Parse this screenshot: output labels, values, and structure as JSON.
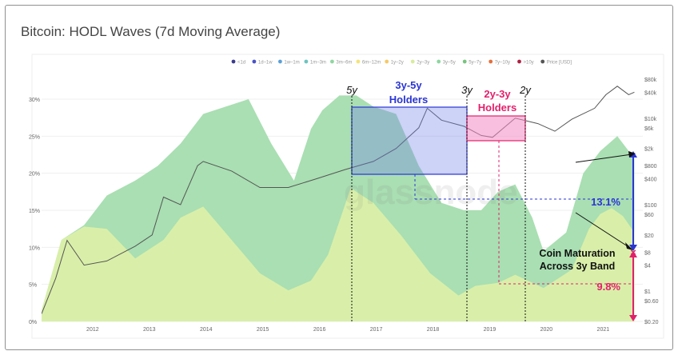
{
  "title": "Bitcoin: HODL Waves (7d Moving Average)",
  "watermark": "glassnode",
  "legend": [
    {
      "label": "<1d",
      "color": "#3b3b8f"
    },
    {
      "label": "1d–1w",
      "color": "#4a52c8"
    },
    {
      "label": "1w–1m",
      "color": "#5aa0d8"
    },
    {
      "label": "1m–3m",
      "color": "#6cc4c0"
    },
    {
      "label": "3m–6m",
      "color": "#8fd6a0"
    },
    {
      "label": "6m–12m",
      "color": "#f3e47a"
    },
    {
      "label": "1y–2y",
      "color": "#f7c868"
    },
    {
      "label": "2y–3y",
      "color": "#d7ec9e"
    },
    {
      "label": "3y–5y",
      "color": "#8ed6a0"
    },
    {
      "label": "5y–7y",
      "color": "#78c47f"
    },
    {
      "label": "7y–10y",
      "color": "#e46f3c"
    },
    {
      "label": ">10y",
      "color": "#b02040"
    },
    {
      "label": "Price [USD]",
      "color": "#555555"
    }
  ],
  "chart_data": {
    "type": "area",
    "title": "Bitcoin: HODL Waves (7d Moving Average)",
    "x_ticks": [
      "2012",
      "2013",
      "2014",
      "2015",
      "2016",
      "2017",
      "2018",
      "2019",
      "2020",
      "2021"
    ],
    "y_left_ticks": [
      "0%",
      "5%",
      "10%",
      "15%",
      "20%",
      "25%",
      "30%"
    ],
    "y_right_ticks": [
      "$0.20",
      "$0.60",
      "$1",
      "$4",
      "$8",
      "$20",
      "$60",
      "$100",
      "$400",
      "$800",
      "$2k",
      "$6k",
      "$10k",
      "$40k",
      "$80k"
    ],
    "ylim_left": [
      0,
      30
    ],
    "series": [
      {
        "name": "2y–3y",
        "color": "#d9efa9",
        "x": [
          2011.15,
          2011.5,
          2011.9,
          2012.3,
          2012.8,
          2013.3,
          2013.6,
          2014.0,
          2014.5,
          2015.0,
          2015.5,
          2015.9,
          2016.2,
          2016.6,
          2017.0,
          2017.5,
          2018.0,
          2018.5,
          2018.8,
          2019.2,
          2019.5,
          2020.0,
          2020.5,
          2020.8,
          2021.0,
          2021.2,
          2021.4,
          2021.6
        ],
        "values": [
          1.5,
          11,
          12.8,
          12.5,
          8.5,
          11,
          14,
          15.5,
          11,
          6.5,
          4.2,
          5.5,
          9,
          18,
          16,
          11.5,
          6.5,
          3.5,
          4.8,
          5.2,
          6.3,
          4.5,
          7,
          12.5,
          14.5,
          15.3,
          14.2,
          12
        ]
      },
      {
        "name": "3y–5y",
        "color": "#a9dfb2",
        "x": [
          2011.15,
          2011.5,
          2011.9,
          2012.3,
          2012.8,
          2013.2,
          2013.6,
          2014.0,
          2014.4,
          2014.8,
          2015.2,
          2015.6,
          2015.9,
          2016.1,
          2016.4,
          2016.7,
          2017.0,
          2017.4,
          2017.8,
          2018.2,
          2018.6,
          2018.9,
          2019.2,
          2019.5,
          2019.8,
          2020.0,
          2020.4,
          2020.7,
          2021.0,
          2021.3,
          2021.6
        ],
        "values": [
          1.5,
          11,
          13,
          17,
          19,
          21,
          24,
          28,
          29,
          30,
          24,
          19,
          26,
          28.5,
          30.5,
          30.5,
          29,
          28,
          21,
          16,
          15,
          15,
          17.5,
          18.5,
          14,
          9.5,
          12,
          20,
          23,
          25,
          22
        ]
      }
    ],
    "price_series": {
      "name": "Price [USD]",
      "x": [
        2011.15,
        2011.4,
        2011.6,
        2011.9,
        2012.3,
        2012.8,
        2013.1,
        2013.3,
        2013.6,
        2013.9,
        2014.0,
        2014.5,
        2015.0,
        2015.5,
        2016.0,
        2016.5,
        2017.0,
        2017.4,
        2017.8,
        2017.95,
        2018.2,
        2018.6,
        2018.9,
        2019.1,
        2019.5,
        2019.9,
        2020.2,
        2020.5,
        2020.9,
        2021.1,
        2021.3,
        2021.5,
        2021.6
      ],
      "values": [
        0.3,
        2,
        15,
        4,
        5,
        11,
        20,
        150,
        100,
        800,
        1000,
        600,
        250,
        250,
        400,
        650,
        1000,
        2000,
        6000,
        17000,
        9000,
        6500,
        4000,
        3600,
        10000,
        7500,
        5000,
        9500,
        17000,
        35000,
        55000,
        35000,
        40000
      ]
    },
    "annotations": [
      {
        "text": "5y",
        "x": 2016.5
      },
      {
        "text": "3y",
        "x": 2018.5
      },
      {
        "text": "2y",
        "x": 2019.55
      },
      {
        "text": "3y-5y Holders"
      },
      {
        "text": "2y-3y Holders"
      },
      {
        "text": "13.1%"
      },
      {
        "text": "9.8%"
      },
      {
        "text": "Coin Maturation Across 3y Band"
      }
    ]
  },
  "annotations": {
    "a5y": "5y",
    "a3y": "3y",
    "a2y": "2y",
    "h35_l1": "3y-5y",
    "h35_l2": "Holders",
    "h23_l1": "2y-3y",
    "h23_l2": "Holders",
    "pct_blue": "13.1%",
    "pct_red": "9.8%",
    "cm_l1": "Coin Maturation",
    "cm_l2": "Across 3y Band"
  },
  "colors": {
    "blue": "#2a35d6",
    "pink": "#e3206b",
    "blue_box": "#6f7fe8",
    "pink_box": "#f48bc3"
  }
}
